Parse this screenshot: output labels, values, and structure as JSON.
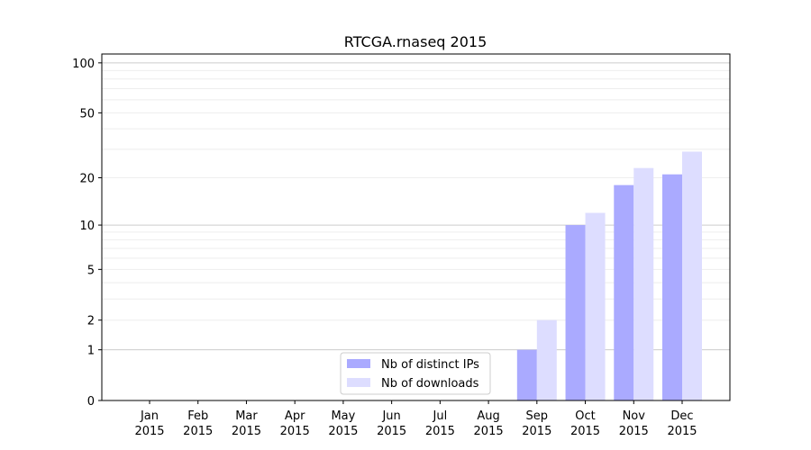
{
  "chart_data": {
    "type": "bar",
    "title": "RTCGA.rnaseq 2015",
    "xlabel": "",
    "ylabel": "",
    "yscale": "symlog (log10(1+y))",
    "ylim": [
      0,
      113
    ],
    "yticks": [
      0,
      1,
      2,
      5,
      10,
      20,
      50,
      100
    ],
    "grid": true,
    "legend_position": "lower-center",
    "categories": [
      [
        "Jan",
        "2015"
      ],
      [
        "Feb",
        "2015"
      ],
      [
        "Mar",
        "2015"
      ],
      [
        "Apr",
        "2015"
      ],
      [
        "May",
        "2015"
      ],
      [
        "Jun",
        "2015"
      ],
      [
        "Jul",
        "2015"
      ],
      [
        "Aug",
        "2015"
      ],
      [
        "Sep",
        "2015"
      ],
      [
        "Oct",
        "2015"
      ],
      [
        "Nov",
        "2015"
      ],
      [
        "Dec",
        "2015"
      ]
    ],
    "series": [
      {
        "name": "Nb of distinct IPs",
        "color": "#aaaaff",
        "values": [
          0,
          0,
          0,
          0,
          0,
          0,
          0,
          0,
          1,
          10,
          18,
          21
        ]
      },
      {
        "name": "Nb of downloads",
        "color": "#ddddff",
        "values": [
          0,
          0,
          0,
          0,
          0,
          0,
          0,
          0,
          2,
          12,
          23,
          29
        ]
      }
    ]
  }
}
